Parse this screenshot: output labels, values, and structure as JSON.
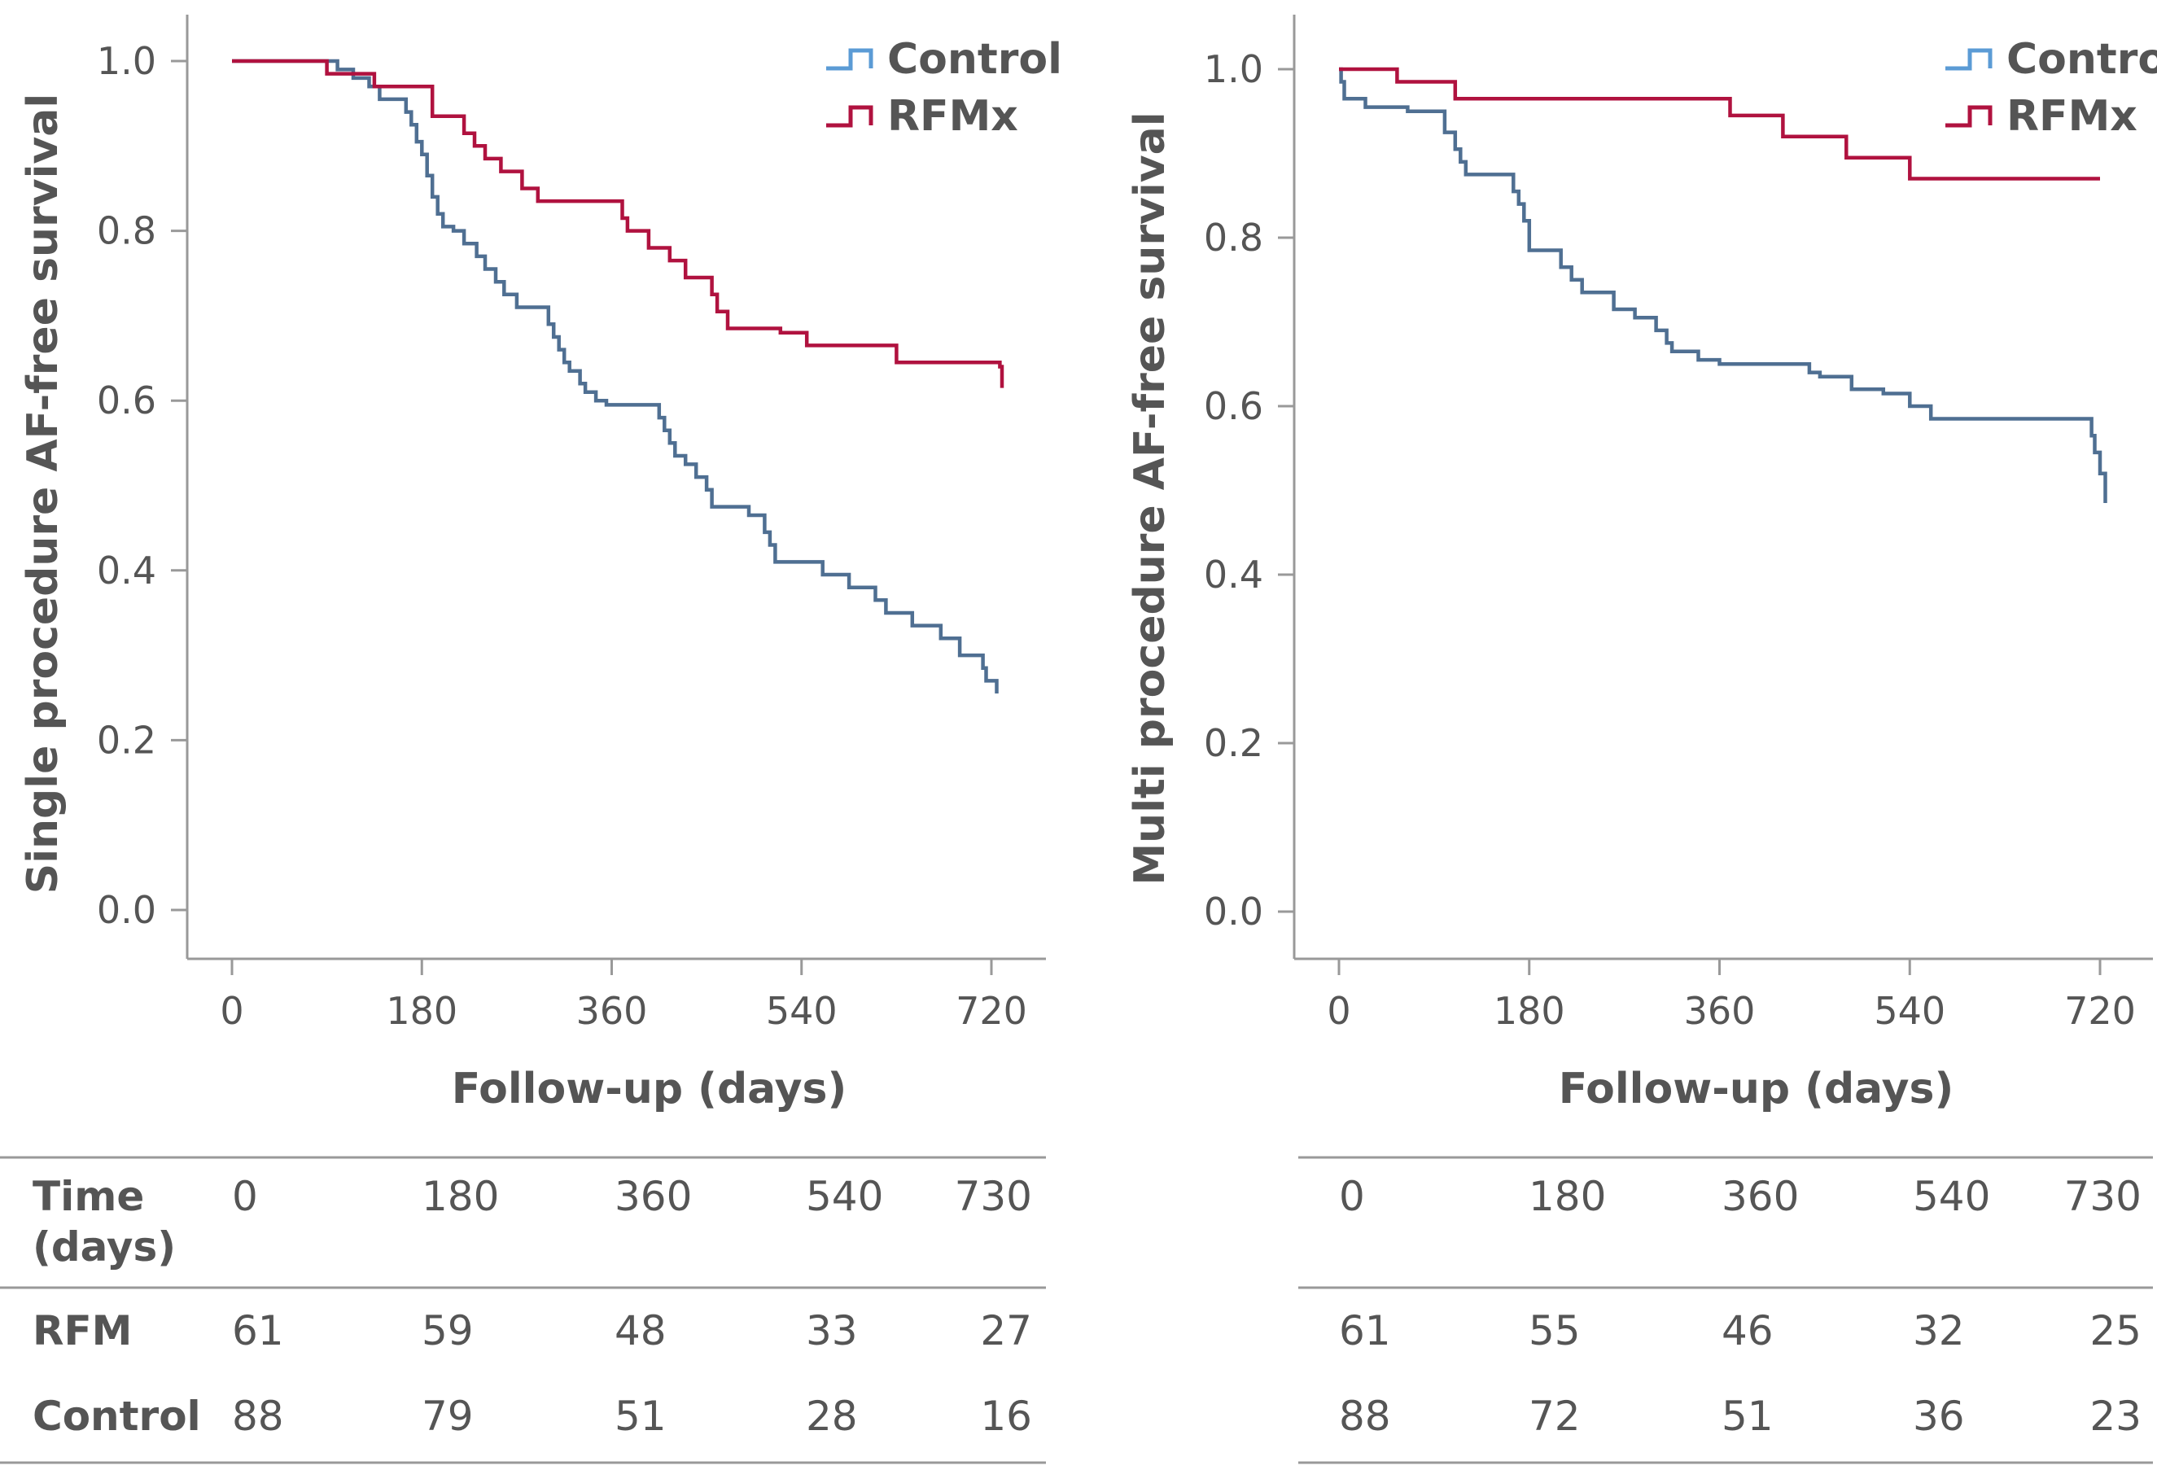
{
  "colors": {
    "control": "#4f6f92",
    "control_legend": "#5b9bd5",
    "rfmx": "#b0123f",
    "axis": "#999999",
    "text": "#555555"
  },
  "chart_data": [
    {
      "type": "line",
      "step": true,
      "ylabel": "Single procedure AF-free survival",
      "xlabel": "Follow-up (days)",
      "xlim": [
        -12,
        760
      ],
      "ylim": [
        -0.055,
        1.055
      ],
      "xticks": [
        0,
        180,
        360,
        540,
        720
      ],
      "yticks": [
        "0.0",
        "0.2",
        "0.4",
        "0.6",
        "0.8",
        "1.0"
      ],
      "legend_position": "top-right",
      "series": [
        {
          "name": "Control",
          "color_key": "control",
          "x": [
            0,
            100,
            115,
            130,
            140,
            150,
            165,
            170,
            175,
            180,
            185,
            190,
            195,
            200,
            210,
            220,
            232,
            240,
            250,
            258,
            270,
            290,
            300,
            305,
            310,
            315,
            320,
            330,
            335,
            345,
            355,
            360,
            380,
            405,
            410,
            415,
            420,
            430,
            440,
            450,
            455,
            460,
            490,
            505,
            510,
            515,
            540,
            560,
            585,
            610,
            620,
            645,
            672,
            690,
            712,
            715,
            725
          ],
          "y": [
            1.0,
            0.99,
            0.98,
            0.97,
            0.955,
            0.955,
            0.94,
            0.925,
            0.905,
            0.89,
            0.865,
            0.84,
            0.82,
            0.805,
            0.8,
            0.785,
            0.77,
            0.755,
            0.74,
            0.725,
            0.71,
            0.71,
            0.69,
            0.675,
            0.66,
            0.645,
            0.635,
            0.62,
            0.61,
            0.6,
            0.595,
            0.595,
            0.595,
            0.58,
            0.565,
            0.55,
            0.535,
            0.525,
            0.51,
            0.495,
            0.475,
            0.475,
            0.465,
            0.445,
            0.43,
            0.41,
            0.41,
            0.395,
            0.38,
            0.365,
            0.35,
            0.335,
            0.32,
            0.3,
            0.285,
            0.27,
            0.255
          ]
        },
        {
          "name": "RFMx",
          "color_key": "rfmx",
          "x": [
            0,
            90,
            135,
            190,
            220,
            230,
            240,
            255,
            275,
            290,
            310,
            370,
            375,
            395,
            415,
            430,
            455,
            460,
            470,
            520,
            545,
            550,
            630,
            650,
            728,
            730
          ],
          "y": [
            1.0,
            0.985,
            0.97,
            0.935,
            0.915,
            0.9,
            0.885,
            0.87,
            0.85,
            0.835,
            0.835,
            0.815,
            0.8,
            0.78,
            0.765,
            0.745,
            0.725,
            0.705,
            0.685,
            0.68,
            0.665,
            0.665,
            0.645,
            0.645,
            0.64,
            0.615
          ]
        }
      ],
      "risk_table": {
        "header": [
          "Time\n(days)",
          "0",
          "180",
          "360",
          "540",
          "730"
        ],
        "rows": [
          {
            "label": "RFM",
            "values": [
              "61",
              "59",
              "48",
              "33",
              "27"
            ]
          },
          {
            "label": "Control",
            "values": [
              "88",
              "79",
              "51",
              "28",
              "16"
            ]
          }
        ]
      }
    },
    {
      "type": "line",
      "step": true,
      "ylabel": "Multi procedure AF-free survival",
      "xlabel": "Follow-up (days)",
      "xlim": [
        -12,
        760
      ],
      "ylim": [
        -0.055,
        1.055
      ],
      "xticks": [
        0,
        180,
        360,
        540,
        720
      ],
      "yticks": [
        "0.0",
        "0.2",
        "0.4",
        "0.6",
        "0.8",
        "1.0"
      ],
      "legend_position": "top-right",
      "series": [
        {
          "name": "Control",
          "color_key": "control",
          "x": [
            0,
            2,
            5,
            25,
            65,
            100,
            110,
            115,
            120,
            130,
            160,
            165,
            170,
            175,
            180,
            200,
            210,
            220,
            230,
            260,
            280,
            300,
            310,
            315,
            340,
            360,
            380,
            445,
            455,
            485,
            515,
            540,
            560,
            620,
            645,
            712,
            715,
            720,
            725
          ],
          "y": [
            1.0,
            0.985,
            0.965,
            0.955,
            0.95,
            0.925,
            0.905,
            0.89,
            0.875,
            0.875,
            0.875,
            0.855,
            0.84,
            0.82,
            0.785,
            0.785,
            0.765,
            0.75,
            0.735,
            0.715,
            0.705,
            0.69,
            0.675,
            0.665,
            0.655,
            0.65,
            0.65,
            0.64,
            0.635,
            0.62,
            0.615,
            0.6,
            0.585,
            0.585,
            0.585,
            0.565,
            0.545,
            0.52,
            0.485
          ]
        },
        {
          "name": "RFMx",
          "color_key": "rfmx",
          "x": [
            0,
            55,
            110,
            360,
            370,
            390,
            420,
            460,
            480,
            520,
            540,
            720
          ],
          "y": [
            1.0,
            0.985,
            0.965,
            0.965,
            0.945,
            0.945,
            0.92,
            0.92,
            0.895,
            0.895,
            0.87,
            0.87
          ]
        }
      ],
      "risk_table": {
        "header": [
          "",
          "0",
          "180",
          "360",
          "540",
          "730"
        ],
        "rows": [
          {
            "label": "",
            "values": [
              "61",
              "55",
              "46",
              "32",
              "25"
            ]
          },
          {
            "label": "",
            "values": [
              "88",
              "72",
              "51",
              "36",
              "23"
            ]
          }
        ]
      }
    }
  ]
}
